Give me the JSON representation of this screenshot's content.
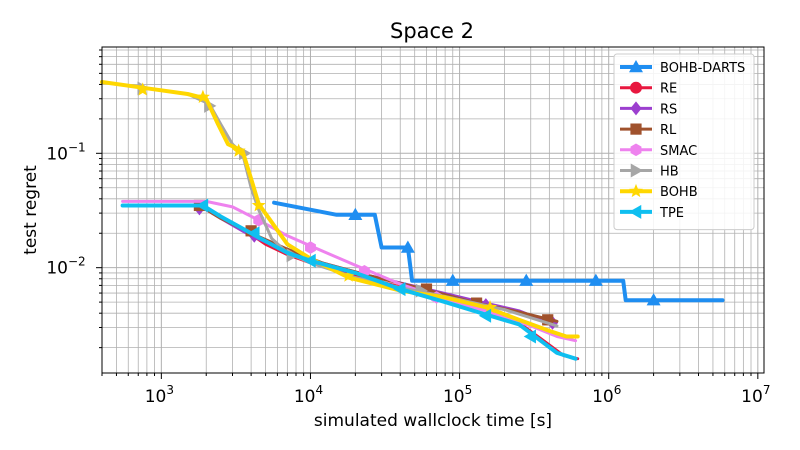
{
  "chart_data": {
    "type": "line",
    "title": "Space 2",
    "xlabel": "simulated wallclock time [s]",
    "ylabel": "test regret",
    "xscale": "log",
    "yscale": "log",
    "xlim": [
      400,
      11000000
    ],
    "ylim": [
      0.0012,
      0.85
    ],
    "grid": true,
    "legend_position": "top-right",
    "x_ticks": [
      {
        "value": 1000,
        "base": "10",
        "exp": "3"
      },
      {
        "value": 10000,
        "base": "10",
        "exp": "4"
      },
      {
        "value": 100000,
        "base": "10",
        "exp": "5"
      },
      {
        "value": 1000000,
        "base": "10",
        "exp": "6"
      },
      {
        "value": 10000000,
        "base": "10",
        "exp": "7"
      }
    ],
    "y_ticks": [
      {
        "value": 0.01,
        "base": "10",
        "exp": "−2"
      },
      {
        "value": 0.1,
        "base": "10",
        "exp": "−1"
      }
    ],
    "series": [
      {
        "name": "BOHB-DARTS",
        "color": "#1f8ef1",
        "marker": "triangle-up",
        "width": 4,
        "points": [
          [
            5700,
            0.037
          ],
          [
            15000,
            0.029
          ],
          [
            27000,
            0.029
          ],
          [
            30000,
            0.015
          ],
          [
            45000,
            0.015
          ],
          [
            48000,
            0.0077
          ],
          [
            400000,
            0.0077
          ],
          [
            1250000,
            0.0077
          ],
          [
            1300000,
            0.0052
          ],
          [
            5800000,
            0.0052
          ]
        ],
        "markers": [
          [
            20000,
            0.029
          ],
          [
            45000,
            0.015
          ],
          [
            90000,
            0.0077
          ],
          [
            280000,
            0.0077
          ],
          [
            820000,
            0.0077
          ],
          [
            2000000,
            0.0052
          ]
        ]
      },
      {
        "name": "RE",
        "color": "#e8173f",
        "marker": "circle",
        "width": 3,
        "points": [
          [
            550,
            0.035
          ],
          [
            1800,
            0.035
          ],
          [
            2500,
            0.028
          ],
          [
            3500,
            0.022
          ],
          [
            5000,
            0.016
          ],
          [
            7000,
            0.013
          ],
          [
            10000,
            0.011
          ],
          [
            20000,
            0.0085
          ],
          [
            40000,
            0.0068
          ],
          [
            80000,
            0.0055
          ],
          [
            150000,
            0.0043
          ],
          [
            250000,
            0.0033
          ],
          [
            350000,
            0.0024
          ],
          [
            500000,
            0.0017
          ],
          [
            620000,
            0.0016
          ]
        ],
        "markers": []
      },
      {
        "name": "RS",
        "color": "#9c3fcf",
        "marker": "diamond",
        "width": 3,
        "points": [
          [
            550,
            0.035
          ],
          [
            1800,
            0.035
          ],
          [
            2500,
            0.027
          ],
          [
            4000,
            0.019
          ],
          [
            7000,
            0.014
          ],
          [
            12000,
            0.011
          ],
          [
            25000,
            0.0085
          ],
          [
            60000,
            0.0065
          ],
          [
            130000,
            0.0051
          ],
          [
            250000,
            0.0042
          ],
          [
            400000,
            0.0033
          ]
        ],
        "markers": [
          [
            1800,
            0.033
          ],
          [
            4200,
            0.019
          ],
          [
            150000,
            0.0047
          ],
          [
            420000,
            0.0033
          ]
        ]
      },
      {
        "name": "RL",
        "color": "#a0522d",
        "marker": "square",
        "width": 3,
        "points": [
          [
            550,
            0.035
          ],
          [
            1800,
            0.035
          ],
          [
            2500,
            0.027
          ],
          [
            4000,
            0.02
          ],
          [
            7000,
            0.0145
          ],
          [
            12000,
            0.011
          ],
          [
            25000,
            0.0085
          ],
          [
            60000,
            0.0064
          ],
          [
            130000,
            0.0049
          ],
          [
            250000,
            0.0041
          ],
          [
            450000,
            0.0034
          ]
        ],
        "markers": [
          [
            1800,
            0.035
          ],
          [
            4000,
            0.021
          ],
          [
            60000,
            0.0065
          ],
          [
            130000,
            0.0049
          ],
          [
            390000,
            0.0035
          ]
        ]
      },
      {
        "name": "SMAC",
        "color": "#ee82ee",
        "marker": "hexagon",
        "width": 3,
        "points": [
          [
            550,
            0.038
          ],
          [
            2000,
            0.038
          ],
          [
            3000,
            0.034
          ],
          [
            4500,
            0.026
          ],
          [
            7000,
            0.019
          ],
          [
            10000,
            0.0155
          ],
          [
            20000,
            0.0105
          ],
          [
            40000,
            0.0072
          ],
          [
            80000,
            0.0053
          ],
          [
            150000,
            0.0042
          ],
          [
            300000,
            0.0031
          ],
          [
            450000,
            0.0025
          ],
          [
            600000,
            0.0023
          ]
        ],
        "markers": [
          [
            4500,
            0.026
          ],
          [
            10000,
            0.015
          ],
          [
            23000,
            0.0093
          ],
          [
            70000,
            0.0055
          ]
        ]
      },
      {
        "name": "HB",
        "color": "#a6a6a6",
        "marker": "triangle-right",
        "width": 3,
        "points": [
          [
            400,
            0.42
          ],
          [
            800,
            0.37
          ],
          [
            1500,
            0.33
          ],
          [
            2100,
            0.27
          ],
          [
            2500,
            0.18
          ],
          [
            3000,
            0.12
          ],
          [
            3500,
            0.1
          ],
          [
            4000,
            0.05
          ],
          [
            4500,
            0.032
          ],
          [
            5500,
            0.018
          ],
          [
            7000,
            0.0135
          ],
          [
            10000,
            0.011
          ],
          [
            20000,
            0.0082
          ],
          [
            40000,
            0.0067
          ],
          [
            80000,
            0.0056
          ],
          [
            200000,
            0.0043
          ],
          [
            450000,
            0.0031
          ]
        ],
        "markers": [
          [
            750,
            0.37
          ],
          [
            2100,
            0.26
          ],
          [
            3600,
            0.1
          ],
          [
            7500,
            0.0128
          ],
          [
            55000,
            0.0063
          ]
        ]
      },
      {
        "name": "BOHB",
        "color": "#ffd700",
        "marker": "star",
        "width": 4,
        "points": [
          [
            400,
            0.42
          ],
          [
            800,
            0.37
          ],
          [
            1500,
            0.33
          ],
          [
            2000,
            0.3
          ],
          [
            2400,
            0.18
          ],
          [
            2800,
            0.12
          ],
          [
            3500,
            0.105
          ],
          [
            4000,
            0.06
          ],
          [
            4500,
            0.036
          ],
          [
            5500,
            0.025
          ],
          [
            7000,
            0.016
          ],
          [
            10000,
            0.012
          ],
          [
            18000,
            0.0082
          ],
          [
            40000,
            0.0063
          ],
          [
            80000,
            0.0055
          ],
          [
            150000,
            0.0045
          ],
          [
            250000,
            0.0035
          ],
          [
            400000,
            0.0028
          ],
          [
            520000,
            0.0025
          ],
          [
            620000,
            0.0025
          ]
        ],
        "markers": [
          [
            750,
            0.36
          ],
          [
            1900,
            0.31
          ],
          [
            3300,
            0.105
          ],
          [
            4500,
            0.035
          ],
          [
            18000,
            0.0085
          ],
          [
            160000,
            0.0045
          ]
        ]
      },
      {
        "name": "TPE",
        "color": "#0fbff0",
        "marker": "triangle-left",
        "width": 4,
        "points": [
          [
            550,
            0.035
          ],
          [
            1900,
            0.035
          ],
          [
            2500,
            0.028
          ],
          [
            3500,
            0.022
          ],
          [
            5000,
            0.017
          ],
          [
            7000,
            0.0135
          ],
          [
            10000,
            0.0115
          ],
          [
            20000,
            0.009
          ],
          [
            40000,
            0.0065
          ],
          [
            80000,
            0.005
          ],
          [
            150000,
            0.0039
          ],
          [
            250000,
            0.0032
          ],
          [
            350000,
            0.0023
          ],
          [
            450000,
            0.0018
          ],
          [
            600000,
            0.0016
          ]
        ],
        "markers": [
          [
            1900,
            0.035
          ],
          [
            4200,
            0.02
          ],
          [
            10000,
            0.0115
          ],
          [
            40000,
            0.0065
          ],
          [
            150000,
            0.0038
          ],
          [
            300000,
            0.0025
          ]
        ]
      }
    ]
  }
}
